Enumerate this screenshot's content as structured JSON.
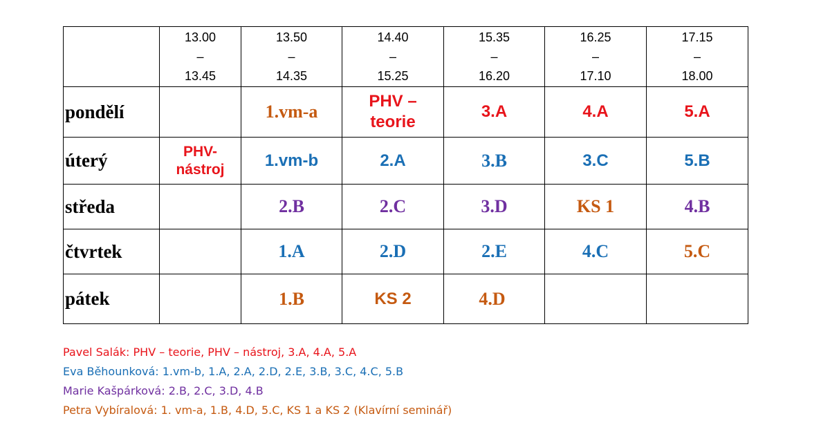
{
  "times": [
    {
      "start": "13.00",
      "dash": "–",
      "end": "13.45"
    },
    {
      "start": "13.50",
      "dash": "–",
      "end": "14.35"
    },
    {
      "start": "14.40",
      "dash": "–",
      "end": "15.25"
    },
    {
      "start": "15.35",
      "dash": "–",
      "end": "16.20"
    },
    {
      "start": "16.25",
      "dash": "–",
      "end": "17.10"
    },
    {
      "start": "17.15",
      "dash": "–",
      "end": "18.00"
    }
  ],
  "days": [
    {
      "name": "pondělí",
      "slots": [
        {
          "text": "",
          "color": ""
        },
        {
          "text": "1.vm-a",
          "color": "#c55a11"
        },
        {
          "line1": "PHV –",
          "line2": "teorie",
          "color": "#e8141b"
        },
        {
          "text": "3.A",
          "color": "#e8141b"
        },
        {
          "text": "4.A",
          "color": "#e8141b"
        },
        {
          "text": "5.A",
          "color": "#e8141b"
        }
      ]
    },
    {
      "name": "úterý",
      "slots": [
        {
          "line1": "PHV-",
          "line2": "nástroj",
          "color": "#e8141b"
        },
        {
          "text": "1.vm-b",
          "color": "#1a6fb5"
        },
        {
          "text": "2.A",
          "color": "#1a6fb5"
        },
        {
          "text": "3.B",
          "color": "#1a6fb5"
        },
        {
          "text": "3.C",
          "color": "#1a6fb5"
        },
        {
          "text": "5.B",
          "color": "#1a6fb5"
        }
      ]
    },
    {
      "name": "středa",
      "slots": [
        {
          "text": "",
          "color": ""
        },
        {
          "text": "2.B",
          "color": "#7030a0"
        },
        {
          "text": "2.C",
          "color": "#7030a0"
        },
        {
          "text": "3.D",
          "color": "#7030a0"
        },
        {
          "text": "KS 1",
          "color": "#c55a11"
        },
        {
          "text": "4.B",
          "color": "#7030a0"
        }
      ]
    },
    {
      "name": "čtvrtek",
      "slots": [
        {
          "text": "",
          "color": ""
        },
        {
          "text": "1.A",
          "color": "#1a6fb5"
        },
        {
          "text": "2.D",
          "color": "#1a6fb5"
        },
        {
          "text": "2.E",
          "color": "#1a6fb5"
        },
        {
          "text": "4.C",
          "color": "#1a6fb5"
        },
        {
          "text": "5.C",
          "color": "#c55a11"
        }
      ]
    },
    {
      "name": "pátek",
      "slots": [
        {
          "text": "",
          "color": ""
        },
        {
          "text": "1.B",
          "color": "#c55a11"
        },
        {
          "text": "KS 2",
          "color": "#c55a11"
        },
        {
          "text": "4.D",
          "color": "#c55a11"
        },
        {
          "text": "",
          "color": ""
        },
        {
          "text": "",
          "color": ""
        }
      ]
    }
  ],
  "legend": [
    {
      "text": "Pavel Salák: PHV – teorie, PHV – nástroj, 3.A, 4.A, 5.A",
      "color": "#e8141b"
    },
    {
      "text": "Eva Běhounková: 1.vm-b, 1.A, 2.A, 2.D, 2.E, 3.B, 3.C, 4.C, 5.B",
      "color": "#1a6fb5"
    },
    {
      "text": "Marie Kašpárková: 2.B, 2.C, 3.D, 4.B",
      "color": "#7030a0"
    },
    {
      "text": "Petra Vybíralová: 1. vm-a, 1.B, 4.D, 5.C, KS 1 a KS 2 (Klavírní seminář)",
      "color": "#c55a11"
    }
  ]
}
